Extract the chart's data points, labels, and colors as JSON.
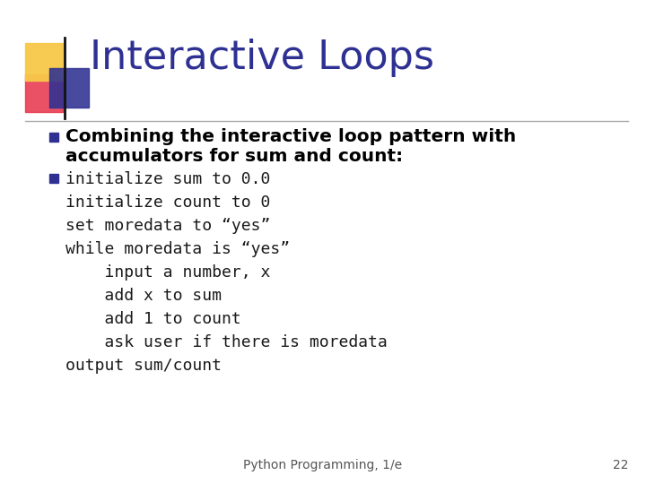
{
  "title": "Interactive Loops",
  "title_color": "#2E3192",
  "title_fontsize": 32,
  "bg_color": "#FFFFFF",
  "bullet1_text": [
    "Combining the interactive loop pattern with",
    "accumulators for sum and count:"
  ],
  "bullet2_lines": [
    "initialize sum to 0.0",
    "initialize count to 0",
    "set moredata to “yes”",
    "while moredata is “yes”",
    "    input a number, x",
    "    add x to sum",
    "    add 1 to count",
    "    ask user if there is moredata",
    "output sum/count"
  ],
  "footer_text": "Python Programming, 1/e",
  "footer_page": "22",
  "bullet_square_color": "#2E3192",
  "monospace_color": "#1a1a1a",
  "decor_yellow": "#F7C948",
  "decor_red": "#E8334A",
  "decor_blue": "#2E3192"
}
